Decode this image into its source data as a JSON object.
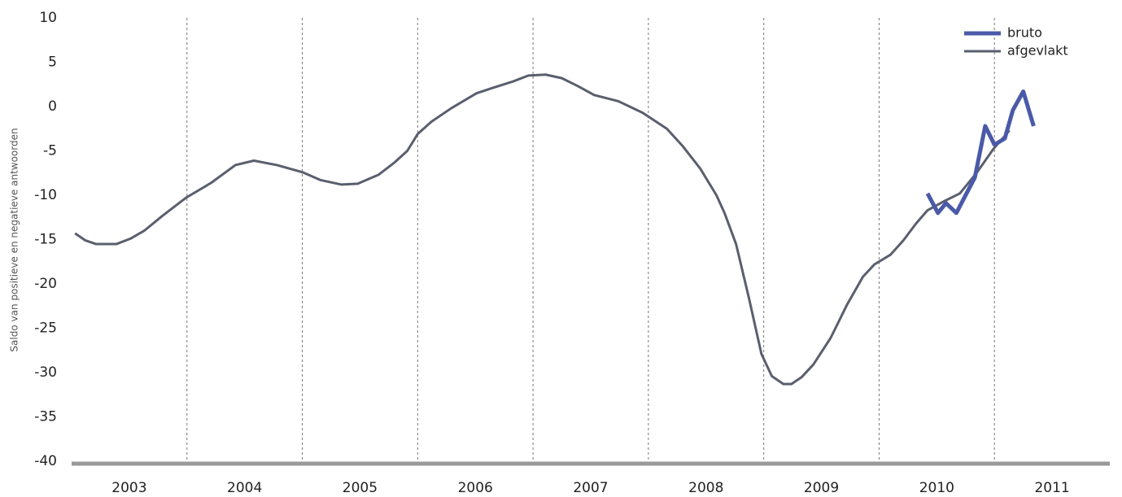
{
  "chart_data": {
    "type": "line",
    "y_label": "Saldo van positieve en negatieve antwoorden",
    "xlim": [
      2003,
      2012
    ],
    "xticks": [
      2003,
      2004,
      2005,
      2006,
      2007,
      2008,
      2009,
      2010,
      2011
    ],
    "ylim": [
      -40,
      10
    ],
    "yticks": [
      10,
      5,
      0,
      -5,
      -10,
      -15,
      -20,
      -25,
      -30,
      -35,
      -40
    ],
    "grid": true,
    "legend": "top-right",
    "series": [
      {
        "name": "bruto",
        "color": "#4a5aa8",
        "x": [
          2010.42,
          2010.51,
          2010.58,
          2010.67,
          2010.83,
          2010.92,
          2011.0,
          2011.09,
          2011.16,
          2011.25,
          2011.34
        ],
        "values": [
          -9.8,
          -12.0,
          -10.9,
          -12.0,
          -8.0,
          -2.2,
          -4.3,
          -3.6,
          -0.4,
          1.7,
          -2.2
        ]
      },
      {
        "name": "afgevlakt",
        "color": "#5a5f6e",
        "x": [
          2003.03,
          2003.12,
          2003.21,
          2003.39,
          2003.51,
          2003.63,
          2003.79,
          2003.99,
          2004.21,
          2004.42,
          2004.58,
          2004.78,
          2005.0,
          2005.16,
          2005.34,
          2005.48,
          2005.66,
          2005.8,
          2005.91,
          2006.0,
          2006.12,
          2006.29,
          2006.51,
          2006.65,
          2006.82,
          2006.96,
          2007.11,
          2007.25,
          2007.39,
          2007.53,
          2007.74,
          2007.95,
          2008.16,
          2008.3,
          2008.45,
          2008.59,
          2008.66,
          2008.76,
          2008.87,
          2008.98,
          2009.07,
          2009.17,
          2009.24,
          2009.33,
          2009.43,
          2009.58,
          2009.72,
          2009.86,
          2009.96,
          2010.1,
          2010.21,
          2010.32,
          2010.42,
          2010.56,
          2010.7,
          2010.85,
          2010.99,
          2011.13
        ],
        "values": [
          -14.3,
          -15.1,
          -15.5,
          -15.5,
          -14.9,
          -14.0,
          -12.3,
          -10.3,
          -8.6,
          -6.6,
          -6.1,
          -6.6,
          -7.4,
          -8.3,
          -8.8,
          -8.7,
          -7.7,
          -6.3,
          -5.0,
          -3.1,
          -1.7,
          -0.2,
          1.5,
          2.1,
          2.8,
          3.5,
          3.6,
          3.2,
          2.3,
          1.3,
          0.6,
          -0.7,
          -2.5,
          -4.5,
          -7.0,
          -10.0,
          -12.0,
          -15.5,
          -21.5,
          -27.9,
          -30.4,
          -31.3,
          -31.3,
          -30.5,
          -29.1,
          -26.1,
          -22.4,
          -19.2,
          -17.8,
          -16.7,
          -15.1,
          -13.2,
          -11.7,
          -10.7,
          -9.8,
          -7.4,
          -4.8,
          -2.7
        ]
      }
    ]
  }
}
